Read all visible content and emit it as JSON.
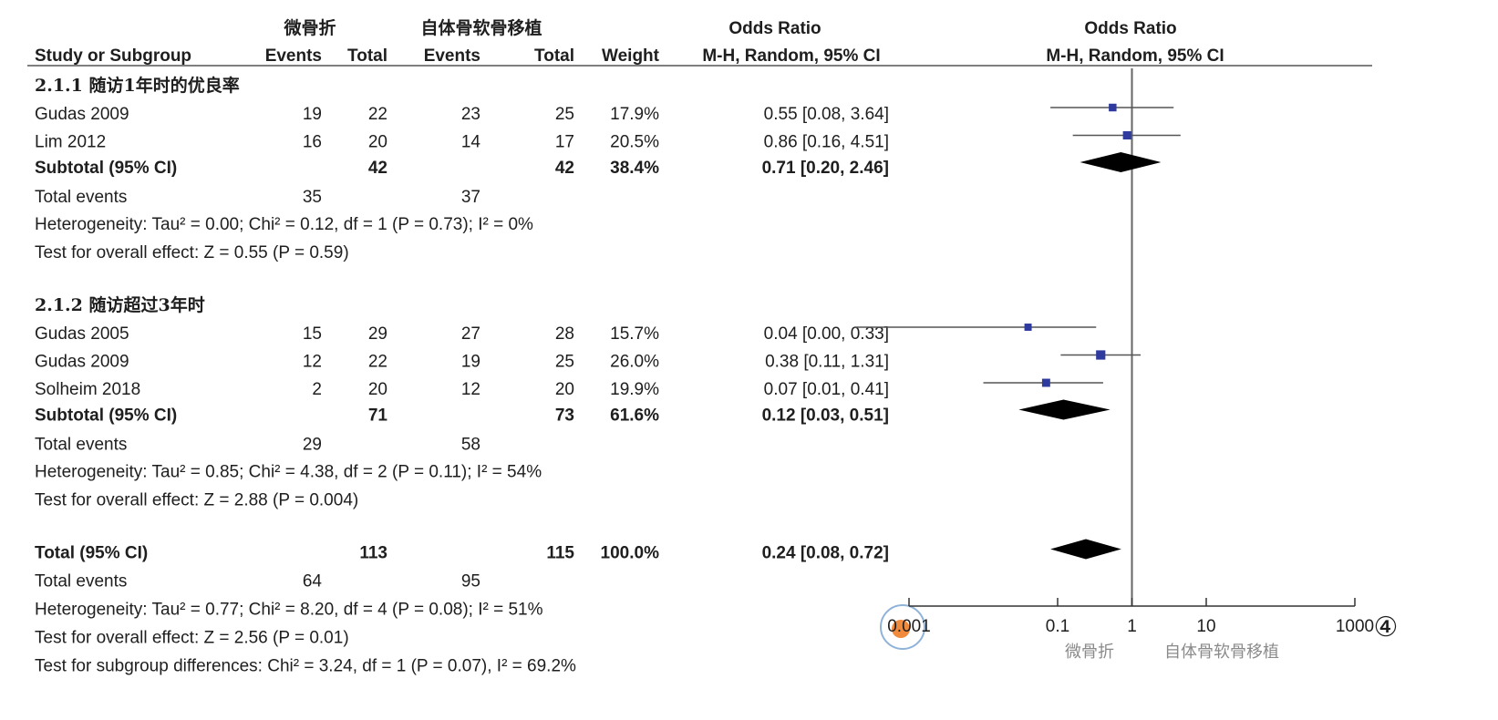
{
  "chart_data": {
    "type": "forest",
    "headers": {
      "experimental": "微骨折",
      "control": "自体骨软骨移植",
      "or_table": "Odds Ratio",
      "or_plot": "Odds Ratio",
      "study": "Study or Subgroup",
      "events1": "Events",
      "total1": "Total",
      "events2": "Events",
      "total2": "Total",
      "weight": "Weight",
      "method_table": "M-H, Random, 95% CI",
      "method_plot": "M-H, Random, 95% CI"
    },
    "subgroups": [
      {
        "title": "2.1.1 随访1年时的优良率",
        "studies": [
          {
            "name": "Gudas  2009",
            "events1": 19,
            "total1": 22,
            "events2": 23,
            "total2": 25,
            "weight": 17.9,
            "weight_label": "17.9%",
            "or": 0.55,
            "ci": [
              0.08,
              3.64
            ],
            "ci_label": "0.55 [0.08, 3.64]"
          },
          {
            "name": "Lim  2012",
            "events1": 16,
            "total1": 20,
            "events2": 14,
            "total2": 17,
            "weight": 20.5,
            "weight_label": "20.5%",
            "or": 0.86,
            "ci": [
              0.16,
              4.51
            ],
            "ci_label": "0.86 [0.16, 4.51]"
          }
        ],
        "subtotal": {
          "label": "Subtotal (95% CI)",
          "total1": 42,
          "total2": 42,
          "weight_label": "38.4%",
          "or": 0.71,
          "ci": [
            0.2,
            2.46
          ],
          "ci_label": "0.71 [0.20, 2.46]"
        },
        "events": {
          "label": "Total events",
          "events1": 35,
          "events2": 37
        },
        "heterogeneity": "Heterogeneity: Tau² = 0.00; Chi² = 0.12, df = 1 (P = 0.73); I² = 0%",
        "overall": "Test for overall effect: Z = 0.55 (P = 0.59)"
      },
      {
        "title": "2.1.2 随访超过3年时",
        "studies": [
          {
            "name": "Gudas  2005",
            "events1": 15,
            "total1": 29,
            "events2": 27,
            "total2": 28,
            "weight": 15.7,
            "weight_label": "15.7%",
            "or": 0.04,
            "ci": [
              0.0,
              0.33
            ],
            "ci_label": "0.04 [0.00, 0.33]"
          },
          {
            "name": "Gudas  2009",
            "events1": 12,
            "total1": 22,
            "events2": 19,
            "total2": 25,
            "weight": 26.0,
            "weight_label": "26.0%",
            "or": 0.38,
            "ci": [
              0.11,
              1.31
            ],
            "ci_label": "0.38 [0.11, 1.31]"
          },
          {
            "name": "Solheim  2018",
            "events1": 2,
            "total1": 20,
            "events2": 12,
            "total2": 20,
            "weight": 19.9,
            "weight_label": "19.9%",
            "or": 0.07,
            "ci": [
              0.01,
              0.41
            ],
            "ci_label": "0.07 [0.01, 0.41]"
          }
        ],
        "subtotal": {
          "label": "Subtotal (95% CI)",
          "total1": 71,
          "total2": 73,
          "weight_label": "61.6%",
          "or": 0.12,
          "ci": [
            0.03,
            0.51
          ],
          "ci_label": "0.12 [0.03, 0.51]"
        },
        "events": {
          "label": "Total events",
          "events1": 29,
          "events2": 58
        },
        "heterogeneity": "Heterogeneity: Tau² = 0.85; Chi² = 4.38, df = 2 (P = 0.11); I² = 54%",
        "overall": "Test for overall effect: Z = 2.88 (P = 0.004)"
      }
    ],
    "total": {
      "label": "Total (95% CI)",
      "total1": 113,
      "total2": 115,
      "weight_label": "100.0%",
      "or": 0.24,
      "ci": [
        0.08,
        0.72
      ],
      "ci_label": "0.24 [0.08, 0.72]",
      "events": {
        "label": "Total events",
        "events1": 64,
        "events2": 95
      },
      "heterogeneity": "Heterogeneity: Tau² = 0.77; Chi² = 8.20, df = 4 (P = 0.08); I² = 51%",
      "overall": "Test for overall effect: Z = 2.56 (P = 0.01)",
      "subgroup_diff": "Test for subgroup differences: Chi² = 3.24, df = 1 (P = 0.07), I² = 69.2%"
    },
    "xscale": "log",
    "xlim": [
      0.001,
      1000
    ],
    "xticks": [
      0.001,
      0.1,
      1,
      10,
      1000
    ],
    "favours": [
      "微骨折",
      "自体骨软骨移植"
    ],
    "marker_color": "#2e3a9e",
    "diamond_color": "#000000",
    "panel_label": "④"
  }
}
